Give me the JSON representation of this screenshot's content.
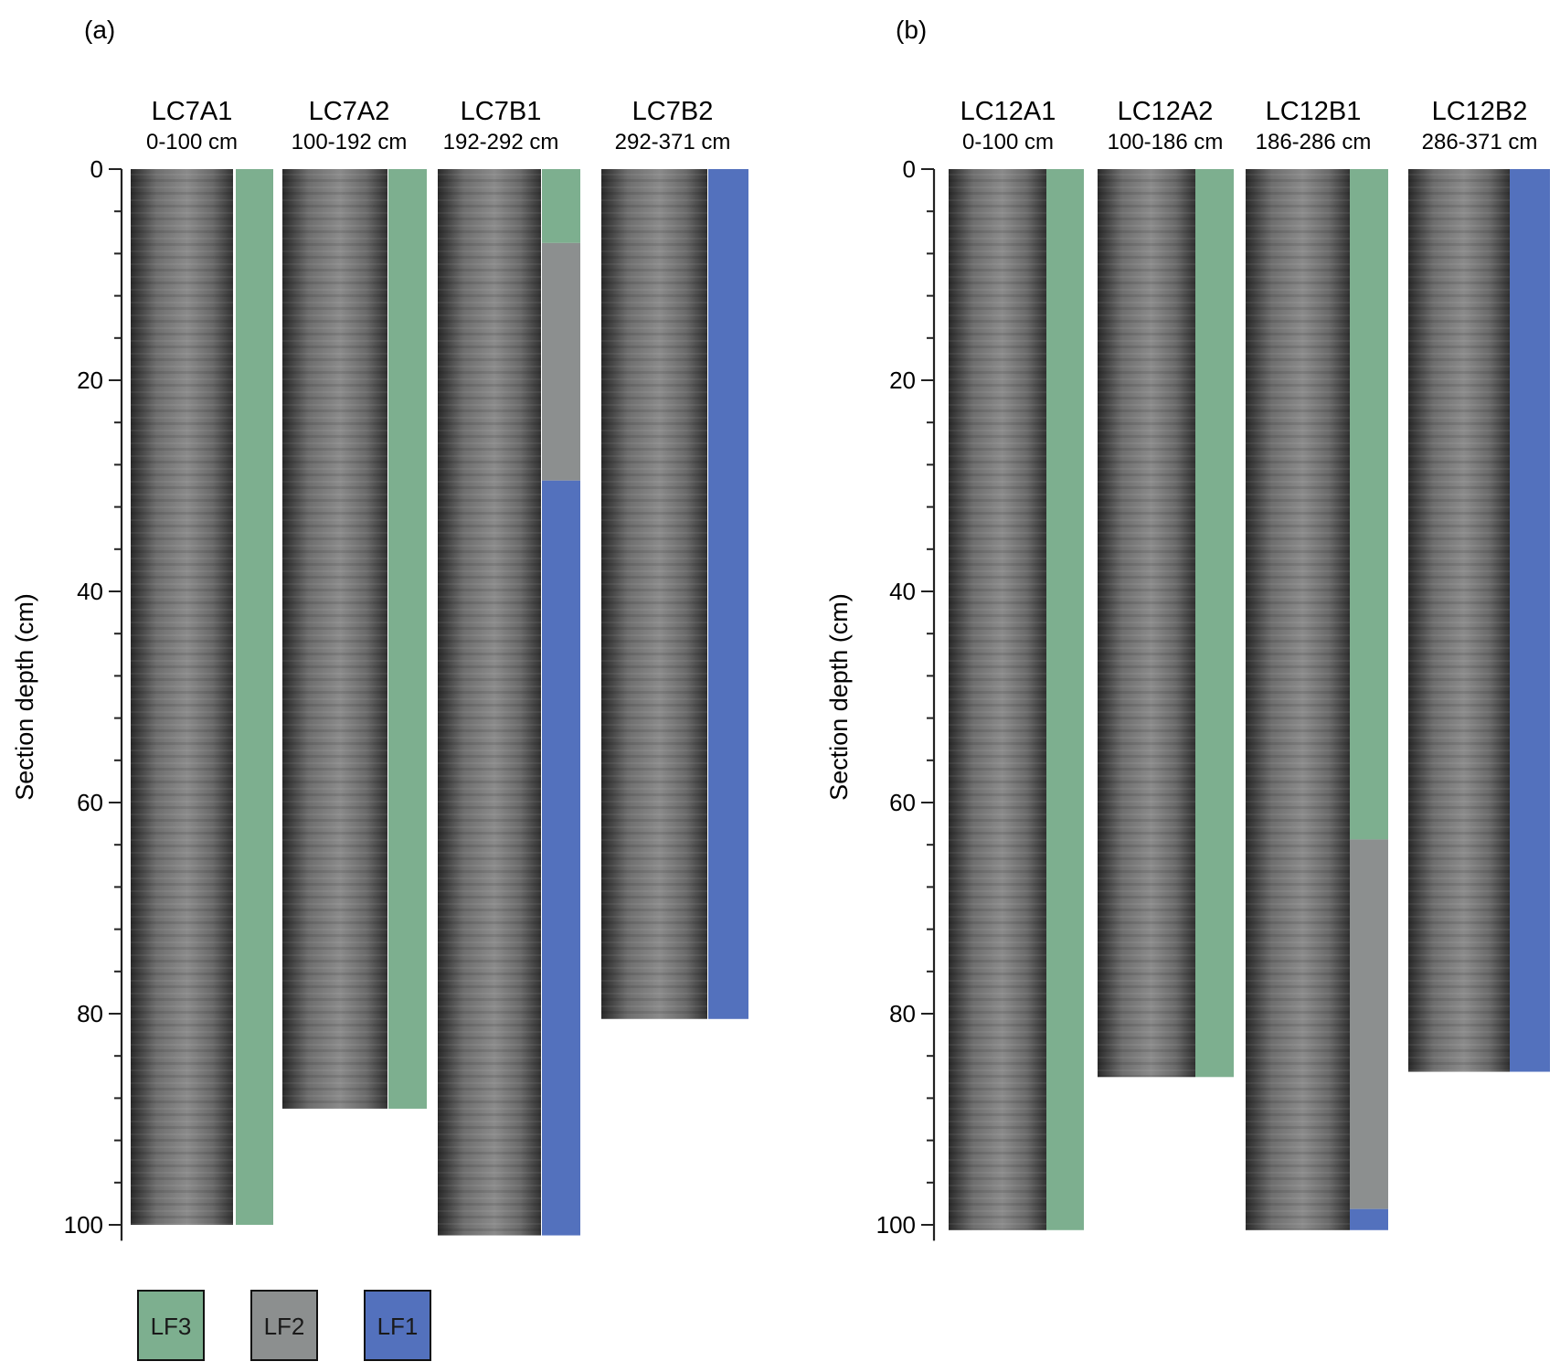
{
  "panels": [
    {
      "label": "(a)",
      "ylabel": "Section depth (cm)",
      "ylim": [
        0,
        100
      ],
      "ticks": [
        "0",
        "20",
        "40",
        "60",
        "80",
        "100"
      ],
      "cores": [
        {
          "name": "LC7A1",
          "range": "0-100 cm",
          "length": 100,
          "facies": [
            {
              "code": "LF3",
              "from": 0,
              "to": 100
            }
          ]
        },
        {
          "name": "LC7A2",
          "range": "100-192 cm",
          "length": 89,
          "facies": [
            {
              "code": "LF3",
              "from": 0,
              "to": 89
            }
          ]
        },
        {
          "name": "LC7B1",
          "range": "192-292 cm",
          "length": 101,
          "facies": [
            {
              "code": "LF3",
              "from": 0,
              "to": 7
            },
            {
              "code": "LF2",
              "from": 7,
              "to": 29.5
            },
            {
              "code": "LF1",
              "from": 29.5,
              "to": 101
            }
          ]
        },
        {
          "name": "LC7B2",
          "range": "292-371 cm",
          "length": 80.5,
          "facies": [
            {
              "code": "LF1",
              "from": 0,
              "to": 80.5
            }
          ]
        }
      ]
    },
    {
      "label": "(b)",
      "ylabel": "Section depth (cm)",
      "ylim": [
        0,
        100
      ],
      "ticks": [
        "0",
        "20",
        "40",
        "60",
        "80",
        "100"
      ],
      "cores": [
        {
          "name": "LC12A1",
          "range": "0-100 cm",
          "length": 100.5,
          "facies": [
            {
              "code": "LF3",
              "from": 0,
              "to": 100.5
            }
          ]
        },
        {
          "name": "LC12A2",
          "range": "100-186 cm",
          "length": 86,
          "facies": [
            {
              "code": "LF3",
              "from": 0,
              "to": 86
            }
          ]
        },
        {
          "name": "LC12B1",
          "range": "186-286 cm",
          "length": 100.5,
          "facies": [
            {
              "code": "LF3",
              "from": 0,
              "to": 63.5
            },
            {
              "code": "LF2",
              "from": 63.5,
              "to": 98.5
            },
            {
              "code": "LF1",
              "from": 98.5,
              "to": 100.5
            }
          ]
        },
        {
          "name": "LC12B2",
          "range": "286-371 cm",
          "length": 85.5,
          "facies": [
            {
              "code": "LF1",
              "from": 0,
              "to": 85.5
            }
          ]
        }
      ]
    }
  ],
  "legend": [
    {
      "code": "LF3",
      "label": "LF3",
      "color": "#7daf8f"
    },
    {
      "code": "LF2",
      "label": "LF2",
      "color": "#8c8f8f"
    },
    {
      "code": "LF1",
      "label": "LF1",
      "color": "#5371bd"
    }
  ]
}
